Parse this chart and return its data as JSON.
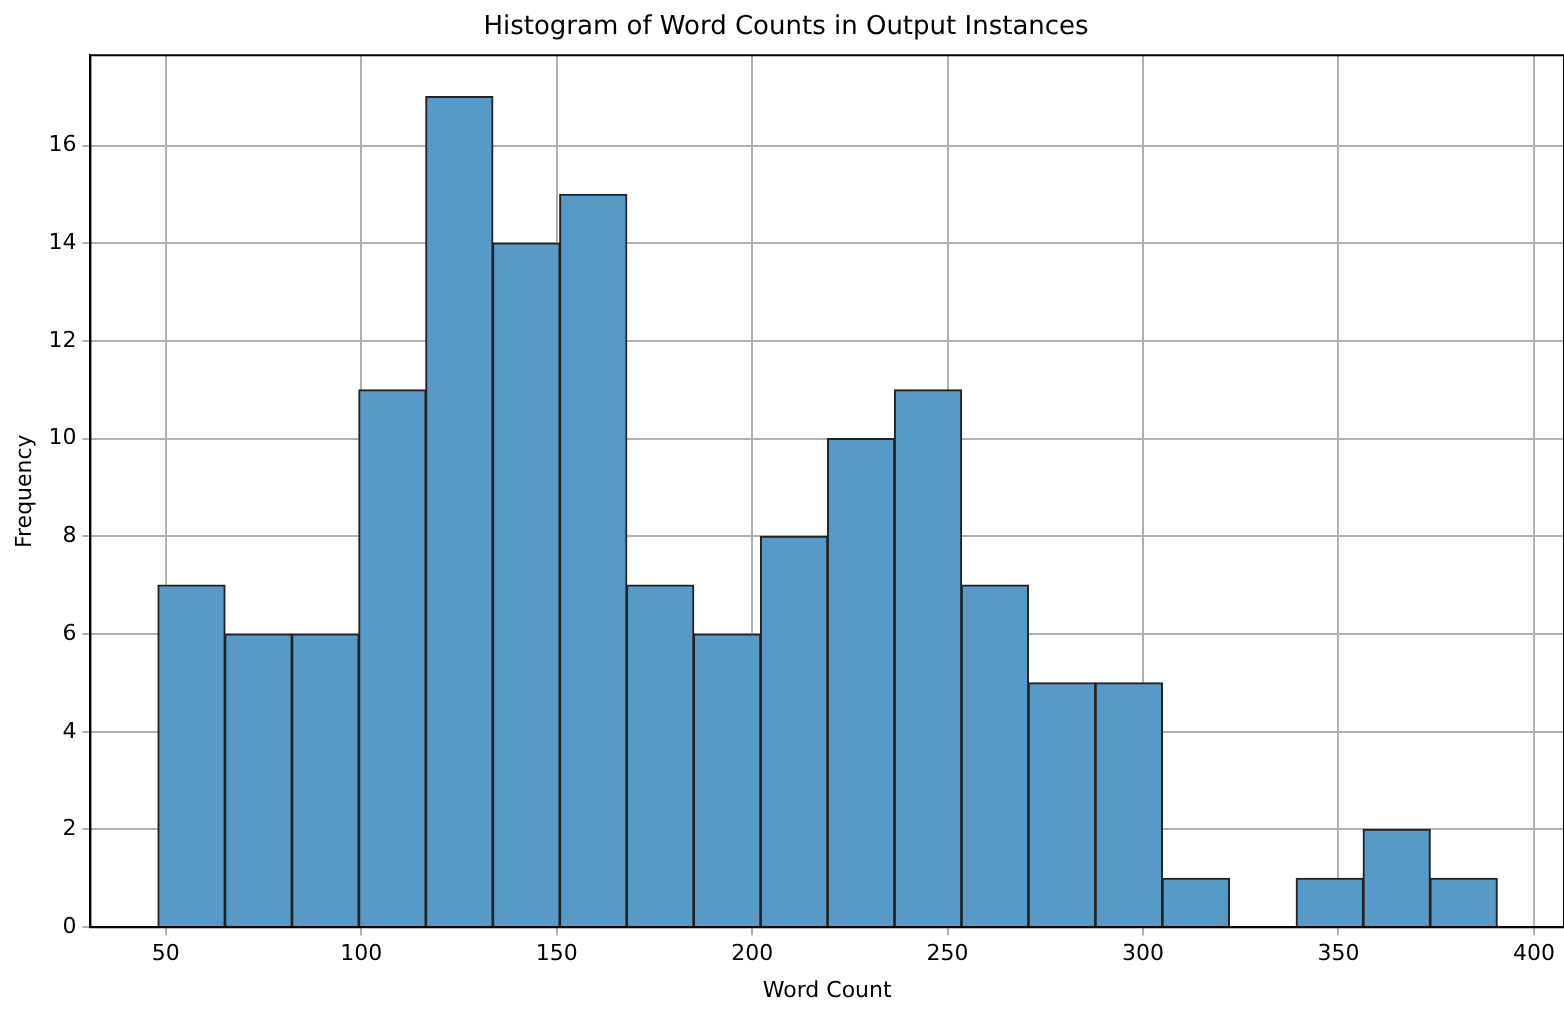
{
  "chart_data": {
    "type": "histogram",
    "title": "Histogram of Word Counts in Output Instances",
    "xlabel": "Word Count",
    "ylabel": "Frequency",
    "bins": [
      48,
      65.13,
      82.26,
      99.39,
      116.52,
      133.65,
      150.78,
      167.91,
      185.04,
      202.17,
      219.3,
      236.43,
      253.56,
      270.69,
      287.82,
      304.95,
      322.08,
      339.21,
      356.34,
      373.47,
      390.6
    ],
    "values": [
      7,
      6,
      6,
      11,
      17,
      14,
      15,
      7,
      6,
      8,
      10,
      11,
      7,
      5,
      5,
      1,
      0,
      1,
      2,
      1
    ],
    "color": "#5799c7",
    "xlim": [
      30.7,
      407.7
    ],
    "xticks": [
      50,
      100,
      150,
      200,
      250,
      300,
      350,
      400
    ],
    "ylim": [
      0,
      17.85
    ],
    "yticks": [
      0,
      2,
      4,
      6,
      8,
      10,
      12,
      14,
      16
    ],
    "grid": true,
    "legend": false
  }
}
